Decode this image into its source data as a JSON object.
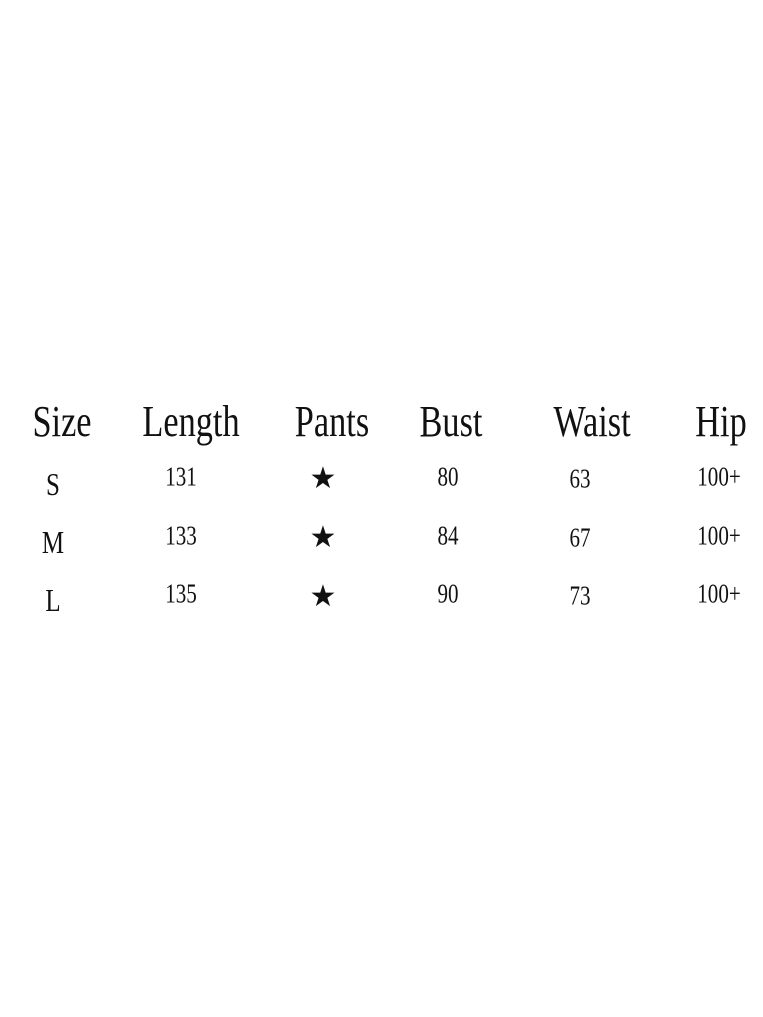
{
  "headers": [
    "Size",
    "Length",
    "Pants",
    "Bust",
    "Waist",
    "Hip"
  ],
  "rows": [
    {
      "size": "S",
      "length": "131",
      "pants": "★",
      "bust": "80",
      "waist": "63",
      "hip": "100+"
    },
    {
      "size": "M",
      "length": "133",
      "pants": "★",
      "bust": "84",
      "waist": "67",
      "hip": "100+"
    },
    {
      "size": "L",
      "length": "135",
      "pants": "★",
      "bust": "90",
      "waist": "73",
      "hip": "100+"
    }
  ]
}
